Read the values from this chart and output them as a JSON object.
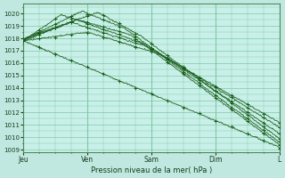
{
  "background_color": "#c0e8e0",
  "plot_bg_color": "#c8f0e8",
  "grid_color": "#80c8a8",
  "line_color": "#1a5c1a",
  "marker_color": "#1a5c1a",
  "ylim": [
    1008.8,
    1020.8
  ],
  "yticks": [
    1009,
    1010,
    1011,
    1012,
    1013,
    1014,
    1015,
    1016,
    1017,
    1018,
    1019,
    1020
  ],
  "xlabel": "Pression niveau de la mer( hPa )",
  "day_labels": [
    "Jeu",
    "Ven",
    "Sam",
    "Dim",
    "L"
  ],
  "day_positions": [
    0,
    24,
    48,
    72,
    96
  ],
  "total_hours": 96,
  "lines": [
    [
      0,
      1017.8,
      14,
      1019.8,
      44,
      1018.2,
      96,
      1009.2
    ],
    [
      0,
      1017.9,
      18,
      1020.1,
      38,
      1018.8,
      96,
      1009.5
    ],
    [
      0,
      1017.8,
      26,
      1020.2,
      36,
      1019.2,
      96,
      1009.8
    ],
    [
      0,
      1018.0,
      28,
      1020.0,
      40,
      1018.5,
      96,
      1010.2
    ],
    [
      0,
      1017.8,
      22,
      1019.5,
      42,
      1018.0,
      96,
      1010.5
    ],
    [
      0,
      1017.9,
      20,
      1019.2,
      46,
      1017.8,
      96,
      1011.0
    ],
    [
      0,
      1017.8,
      0,
      1017.8,
      46,
      1016.5,
      96,
      1010.8
    ]
  ]
}
